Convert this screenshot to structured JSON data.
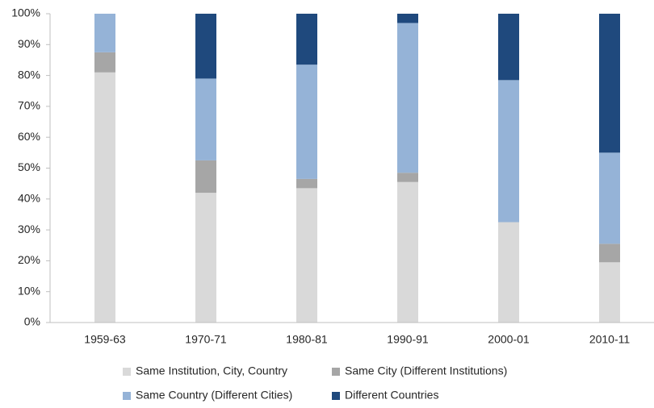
{
  "chart_data": {
    "type": "stacked_bar",
    "categories": [
      "1959-63",
      "1970-71",
      "1980-81",
      "1990-91",
      "2000-01",
      "2010-11"
    ],
    "series": [
      {
        "name": "Same Institution, City, Country",
        "color": "#d9d9d9",
        "values": [
          81,
          42,
          43.5,
          45.5,
          32.5,
          19.5
        ]
      },
      {
        "name": "Same City (Different Institutions)",
        "color": "#a6a6a6",
        "values": [
          6.5,
          10.5,
          3,
          3,
          0,
          6
        ]
      },
      {
        "name": "Same Country (Different Cities)",
        "color": "#95b3d7",
        "values": [
          12.5,
          26.5,
          37,
          48.5,
          46,
          29.5
        ]
      },
      {
        "name": "Different Countries",
        "color": "#1f497d",
        "values": [
          0,
          21,
          16.5,
          3,
          21.5,
          45
        ]
      }
    ],
    "ylim": [
      0,
      100
    ],
    "yticks": [
      {
        "value": 0,
        "label": "0%"
      },
      {
        "value": 10,
        "label": "10%"
      },
      {
        "value": 20,
        "label": "20%"
      },
      {
        "value": 30,
        "label": "30%"
      },
      {
        "value": 40,
        "label": "40%"
      },
      {
        "value": 50,
        "label": "50%"
      },
      {
        "value": 60,
        "label": "60%"
      },
      {
        "value": 70,
        "label": "70%"
      },
      {
        "value": 80,
        "label": "80%"
      },
      {
        "value": 90,
        "label": "90%"
      },
      {
        "value": 100,
        "label": "100%"
      }
    ],
    "grid": false,
    "legend": "bottom"
  }
}
